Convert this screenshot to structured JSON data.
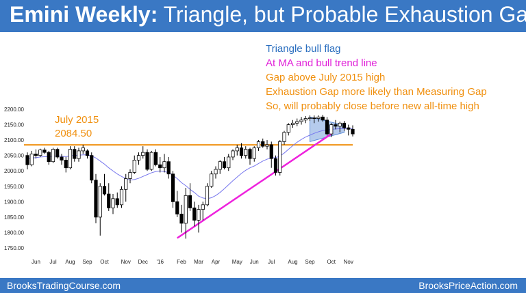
{
  "header": {
    "title_bold": "Emini Weekly:",
    "title_rest": " Triangle, but Probable Exhaustion Gap"
  },
  "footer": {
    "left": "BrooksTradingCourse.com",
    "right": "BrooksPriceAction.com"
  },
  "colors": {
    "header_bg": "#3a78c4",
    "bull_body": "#ffffff",
    "bear_body": "#000000",
    "ma": "#7777ee",
    "hline": "#f0900f",
    "trendline": "#ee22dd",
    "triangle": "#5b8bd8",
    "text_blue": "#2a6ebf",
    "text_orange": "#f0900f",
    "text_magenta": "#e020d8"
  },
  "annotations": {
    "level_label": "July 2015",
    "level_value": "2084.50",
    "lines": [
      {
        "text": "Triangle bull flag",
        "color": "blue"
      },
      {
        "text": "At MA and bull trend line",
        "color": "magenta"
      },
      {
        "text": "Gap above July 2015 high",
        "color": "orange"
      },
      {
        "text": "Exhaustion Gap more likely than Measuring Gap",
        "color": "orange"
      },
      {
        "text": "So, will probably close before new all-time high",
        "color": "orange"
      }
    ]
  },
  "chart_data": {
    "type": "candlestick",
    "y_ticks": [
      "2200.00",
      "2150.00",
      "2100.00",
      "2050.00",
      "2000.00",
      "1950.00",
      "1900.00",
      "1850.00",
      "1800.00",
      "1750.00"
    ],
    "ylim": [
      1750,
      2200
    ],
    "x_ticks": [
      {
        "label": "Jun",
        "i": 2
      },
      {
        "label": "Jul",
        "i": 6
      },
      {
        "label": "Aug",
        "i": 10
      },
      {
        "label": "Sep",
        "i": 14
      },
      {
        "label": "Oct",
        "i": 18
      },
      {
        "label": "Nov",
        "i": 23
      },
      {
        "label": "Dec",
        "i": 27
      },
      {
        "label": "'16",
        "i": 31
      },
      {
        "label": "Feb",
        "i": 36
      },
      {
        "label": "Mar",
        "i": 40
      },
      {
        "label": "Apr",
        "i": 44
      },
      {
        "label": "May",
        "i": 49
      },
      {
        "label": "Jun",
        "i": 53
      },
      {
        "label": "Jul",
        "i": 57
      },
      {
        "label": "Aug",
        "i": 62
      },
      {
        "label": "Sep",
        "i": 66
      },
      {
        "label": "Oct",
        "i": 71
      },
      {
        "label": "Nov",
        "i": 75
      }
    ],
    "hline": 2084.5,
    "trendline": [
      {
        "i": 35,
        "y": 1782
      },
      {
        "i": 71,
        "y": 2120
      }
    ],
    "triangle": [
      {
        "i": 66,
        "y": 2175
      },
      {
        "i": 74,
        "y": 2148
      },
      {
        "i": 74,
        "y": 2125
      },
      {
        "i": 66,
        "y": 2095
      }
    ],
    "ohlc": [
      [
        2050,
        2060,
        2005,
        2020
      ],
      [
        2020,
        2065,
        2015,
        2055
      ],
      [
        2055,
        2070,
        2040,
        2050
      ],
      [
        2050,
        2072,
        2045,
        2068
      ],
      [
        2068,
        2075,
        2055,
        2060
      ],
      [
        2060,
        2065,
        2020,
        2030
      ],
      [
        2030,
        2075,
        2025,
        2070
      ],
      [
        2070,
        2075,
        2040,
        2045
      ],
      [
        2045,
        2055,
        2020,
        2035
      ],
      [
        2035,
        2045,
        1995,
        2010
      ],
      [
        2010,
        2080,
        2005,
        2070
      ],
      [
        2070,
        2080,
        2030,
        2040
      ],
      [
        2040,
        2075,
        2030,
        2065
      ],
      [
        2065,
        2085,
        2055,
        2075
      ],
      [
        2065,
        2070,
        2040,
        2050
      ],
      [
        2050,
        2060,
        1960,
        1970
      ],
      [
        1970,
        1990,
        1830,
        1850
      ],
      [
        1850,
        1960,
        1790,
        1950
      ],
      [
        1950,
        1990,
        1920,
        1925
      ],
      [
        1925,
        1960,
        1870,
        1880
      ],
      [
        1880,
        1925,
        1860,
        1910
      ],
      [
        1910,
        1930,
        1880,
        1890
      ],
      [
        1890,
        1950,
        1880,
        1940
      ],
      [
        1940,
        1990,
        1900,
        1975
      ],
      [
        1975,
        2005,
        1960,
        1995
      ],
      [
        1995,
        2050,
        1990,
        2035
      ],
      [
        2035,
        2060,
        2020,
        2050
      ],
      [
        2050,
        2080,
        2040,
        2060
      ],
      [
        2060,
        2070,
        2000,
        2005
      ],
      [
        2005,
        2065,
        2000,
        2060
      ],
      [
        2060,
        2070,
        2015,
        2020
      ],
      [
        2020,
        2045,
        1995,
        2010
      ],
      [
        2010,
        2055,
        1995,
        2030
      ],
      [
        2030,
        2045,
        1975,
        1990
      ],
      [
        1990,
        2000,
        1880,
        1900
      ],
      [
        1900,
        1935,
        1850,
        1860
      ],
      [
        1860,
        1890,
        1800,
        1830
      ],
      [
        1830,
        1945,
        1780,
        1920
      ],
      [
        1920,
        1960,
        1870,
        1880
      ],
      [
        1880,
        1900,
        1820,
        1840
      ],
      [
        1840,
        1890,
        1800,
        1875
      ],
      [
        1875,
        1900,
        1840,
        1890
      ],
      [
        1890,
        1960,
        1885,
        1950
      ],
      [
        1950,
        2000,
        1945,
        1990
      ],
      [
        1990,
        2015,
        1975,
        2005
      ],
      [
        2005,
        2035,
        1990,
        2030
      ],
      [
        2030,
        2045,
        2005,
        2010
      ],
      [
        2010,
        2055,
        2000,
        2045
      ],
      [
        2045,
        2070,
        2035,
        2065
      ],
      [
        2065,
        2085,
        2050,
        2075
      ],
      [
        2075,
        2090,
        2040,
        2050
      ],
      [
        2050,
        2080,
        2040,
        2070
      ],
      [
        2070,
        2075,
        2020,
        2040
      ],
      [
        2040,
        2080,
        2030,
        2075
      ],
      [
        2075,
        2100,
        2065,
        2095
      ],
      [
        2095,
        2105,
        2075,
        2080
      ],
      [
        2080,
        2100,
        2070,
        2085
      ],
      [
        2085,
        2095,
        2010,
        2040
      ],
      [
        2040,
        2050,
        1985,
        1995
      ],
      [
        1995,
        2100,
        1985,
        2095
      ],
      [
        2095,
        2130,
        2085,
        2125
      ],
      [
        2125,
        2155,
        2115,
        2150
      ],
      [
        2150,
        2165,
        2140,
        2155
      ],
      [
        2155,
        2170,
        2145,
        2160
      ],
      [
        2160,
        2175,
        2150,
        2165
      ],
      [
        2165,
        2178,
        2155,
        2170
      ],
      [
        2170,
        2180,
        2162,
        2172
      ],
      [
        2172,
        2180,
        2155,
        2170
      ],
      [
        2170,
        2180,
        2160,
        2175
      ],
      [
        2175,
        2182,
        2160,
        2165
      ],
      [
        2165,
        2175,
        2115,
        2120
      ],
      [
        2120,
        2155,
        2110,
        2150
      ],
      [
        2150,
        2165,
        2135,
        2145
      ],
      [
        2145,
        2160,
        2125,
        2155
      ],
      [
        2155,
        2162,
        2130,
        2140
      ],
      [
        2140,
        2150,
        2115,
        2135
      ],
      [
        2135,
        2148,
        2112,
        2120
      ]
    ],
    "ma": [
      2040,
      2042,
      2043,
      2045,
      2046,
      2046,
      2048,
      2049,
      2048,
      2046,
      2049,
      2050,
      2051,
      2052,
      2052,
      2049,
      2042,
      2032,
      2022,
      2010,
      2000,
      1990,
      1982,
      1975,
      1970,
      1972,
      1976,
      1982,
      1988,
      1994,
      1998,
      2000,
      1998,
      1994,
      1986,
      1975,
      1962,
      1952,
      1940,
      1930,
      1918,
      1912,
      1910,
      1913,
      1920,
      1930,
      1942,
      1955,
      1968,
      1980,
      1992,
      2002,
      2010,
      2016,
      2024,
      2032,
      2038,
      2042,
      2043,
      2048,
      2058,
      2070,
      2082,
      2093,
      2102,
      2110,
      2116,
      2122,
      2127,
      2131,
      2133,
      2135,
      2136,
      2137,
      2137,
      2138,
      2137
    ]
  }
}
